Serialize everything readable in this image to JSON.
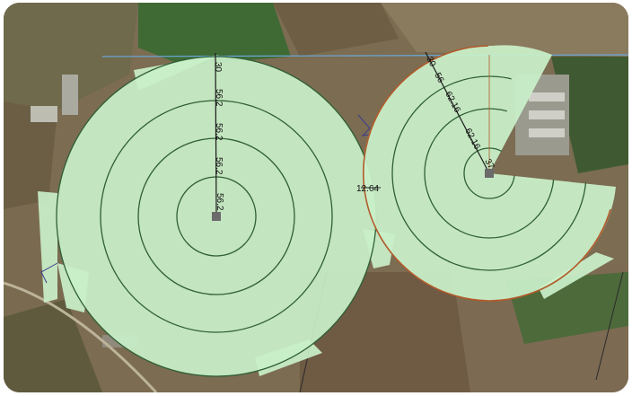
{
  "map": {
    "colors": {
      "coverage_fill": "#c9f0c9",
      "ring_stroke": "#2f5f35",
      "radius_line": "#1a1a1a",
      "boundary_left": "#3d3d8f",
      "boundary_right": "#b25a2a"
    },
    "left_pivot": {
      "radius_labels": [
        "30",
        "56.2",
        "56.2",
        "56.2",
        "56.2"
      ],
      "center_marker": "pivot-center"
    },
    "right_pivot": {
      "radius_labels": [
        "30",
        "56",
        "62.16",
        "62.16",
        "37"
      ],
      "center_marker": "pivot-center"
    },
    "gap_label": "12.64"
  }
}
